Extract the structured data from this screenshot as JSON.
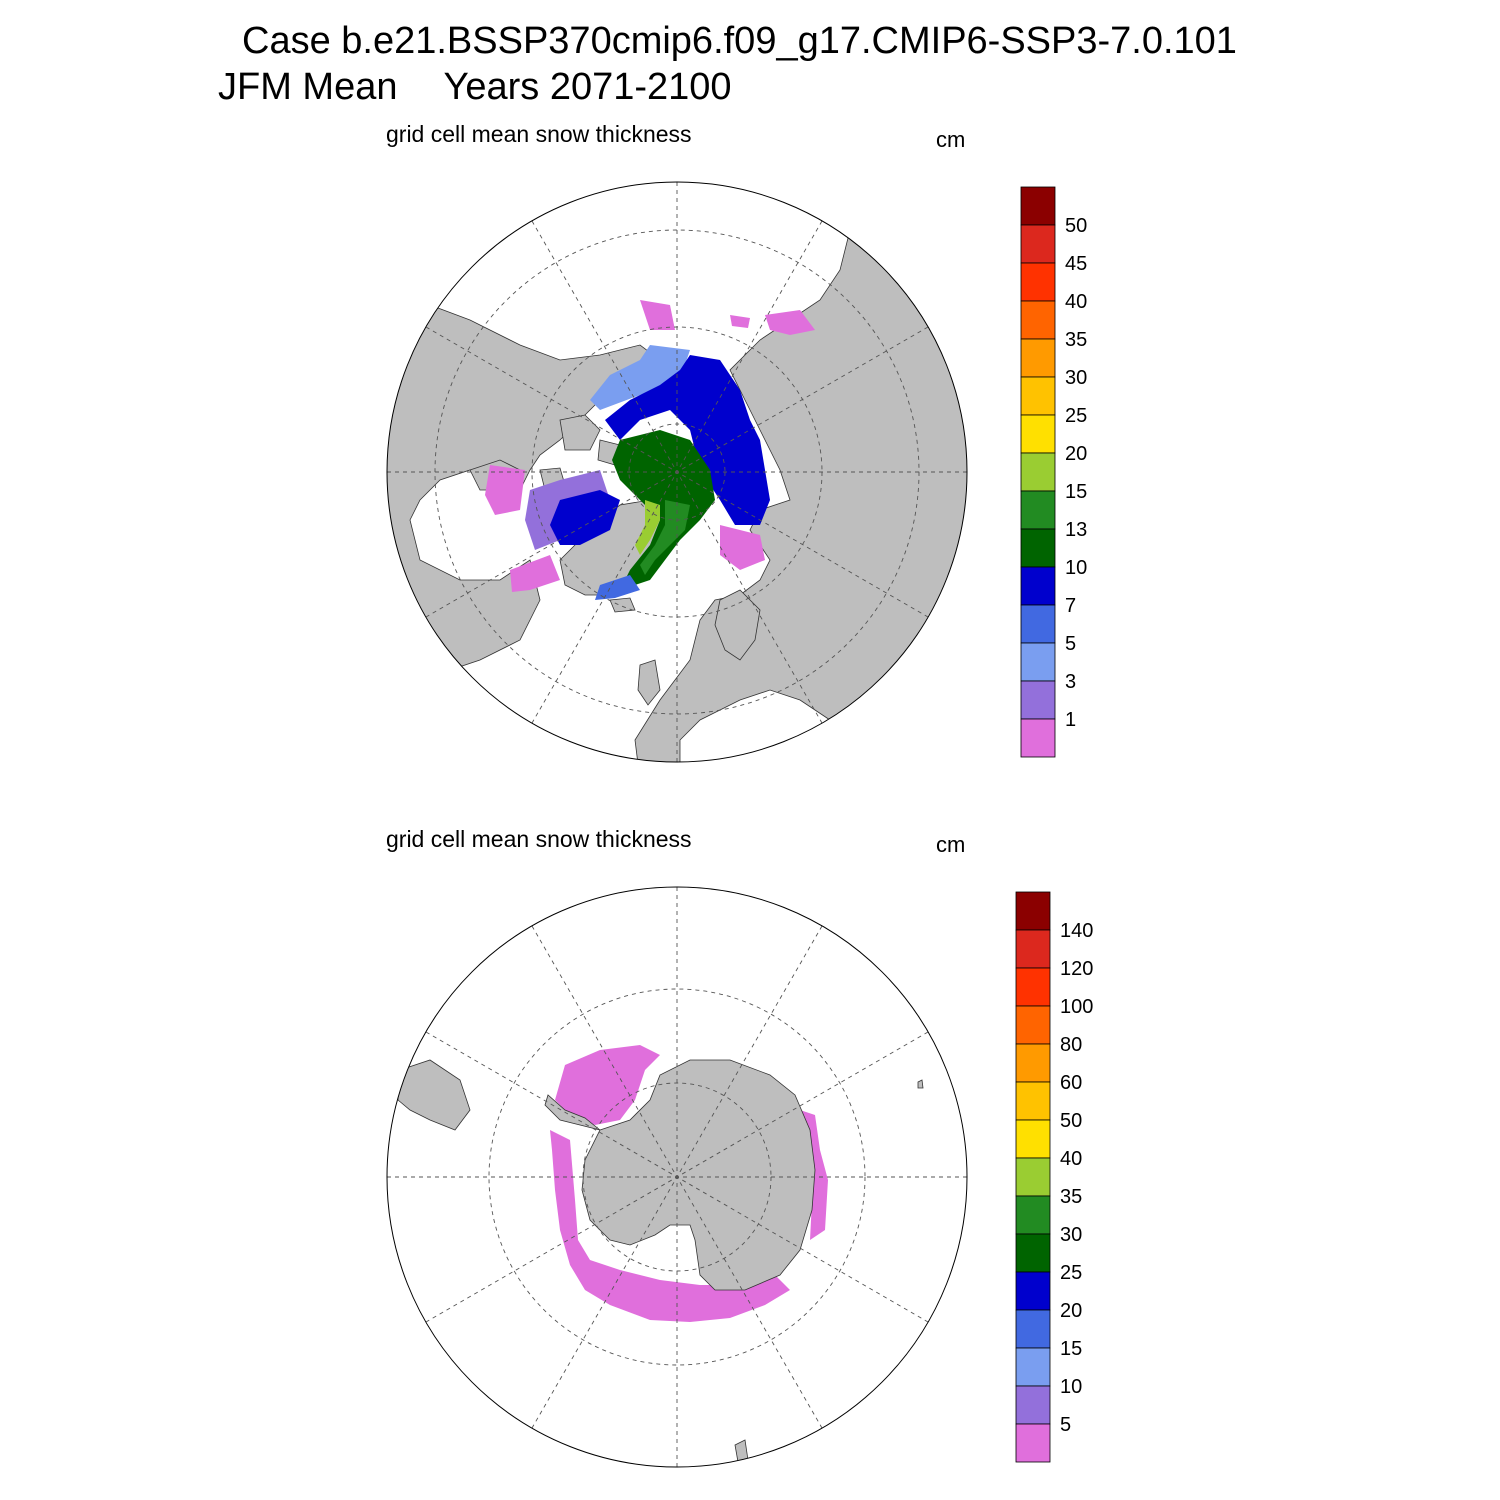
{
  "header": {
    "case_line": "Case b.e21.BSSP370cmip6.f09_g17.CMIP6-SSP3-7.0.101",
    "season": "JFM Mean",
    "years": "Years 2071-2100"
  },
  "colors": {
    "land": "#bebebe",
    "ocean": "#ffffff",
    "grid": "#555555"
  },
  "chart_data": [
    {
      "type": "heatmap",
      "projection": "north-polar-stereographic",
      "title": "grid cell mean snow thickness",
      "units": "cm",
      "legend_position": "right",
      "colorbar_levels": [
        "1",
        "3",
        "5",
        "7",
        "10",
        "13",
        "15",
        "20",
        "25",
        "30",
        "35",
        "40",
        "45",
        "50"
      ],
      "colorbar_colors": [
        "#e06fdc",
        "#9370db",
        "#7a9ef0",
        "#4169e1",
        "#0000cd",
        "#006400",
        "#228b22",
        "#9acd32",
        "#ffe000",
        "#ffc200",
        "#ff9a00",
        "#ff6400",
        "#ff3200",
        "#dc281e",
        "#8b0000"
      ]
    },
    {
      "type": "heatmap",
      "projection": "south-polar-stereographic",
      "title": "grid cell mean snow thickness",
      "units": "cm",
      "legend_position": "right",
      "colorbar_levels": [
        "5",
        "10",
        "15",
        "20",
        "25",
        "30",
        "35",
        "40",
        "50",
        "60",
        "80",
        "100",
        "120",
        "140"
      ],
      "colorbar_colors": [
        "#e06fdc",
        "#9370db",
        "#7a9ef0",
        "#4169e1",
        "#0000cd",
        "#006400",
        "#228b22",
        "#9acd32",
        "#ffe000",
        "#ffc200",
        "#ff9a00",
        "#ff6400",
        "#ff3200",
        "#dc281e",
        "#8b0000"
      ]
    }
  ]
}
